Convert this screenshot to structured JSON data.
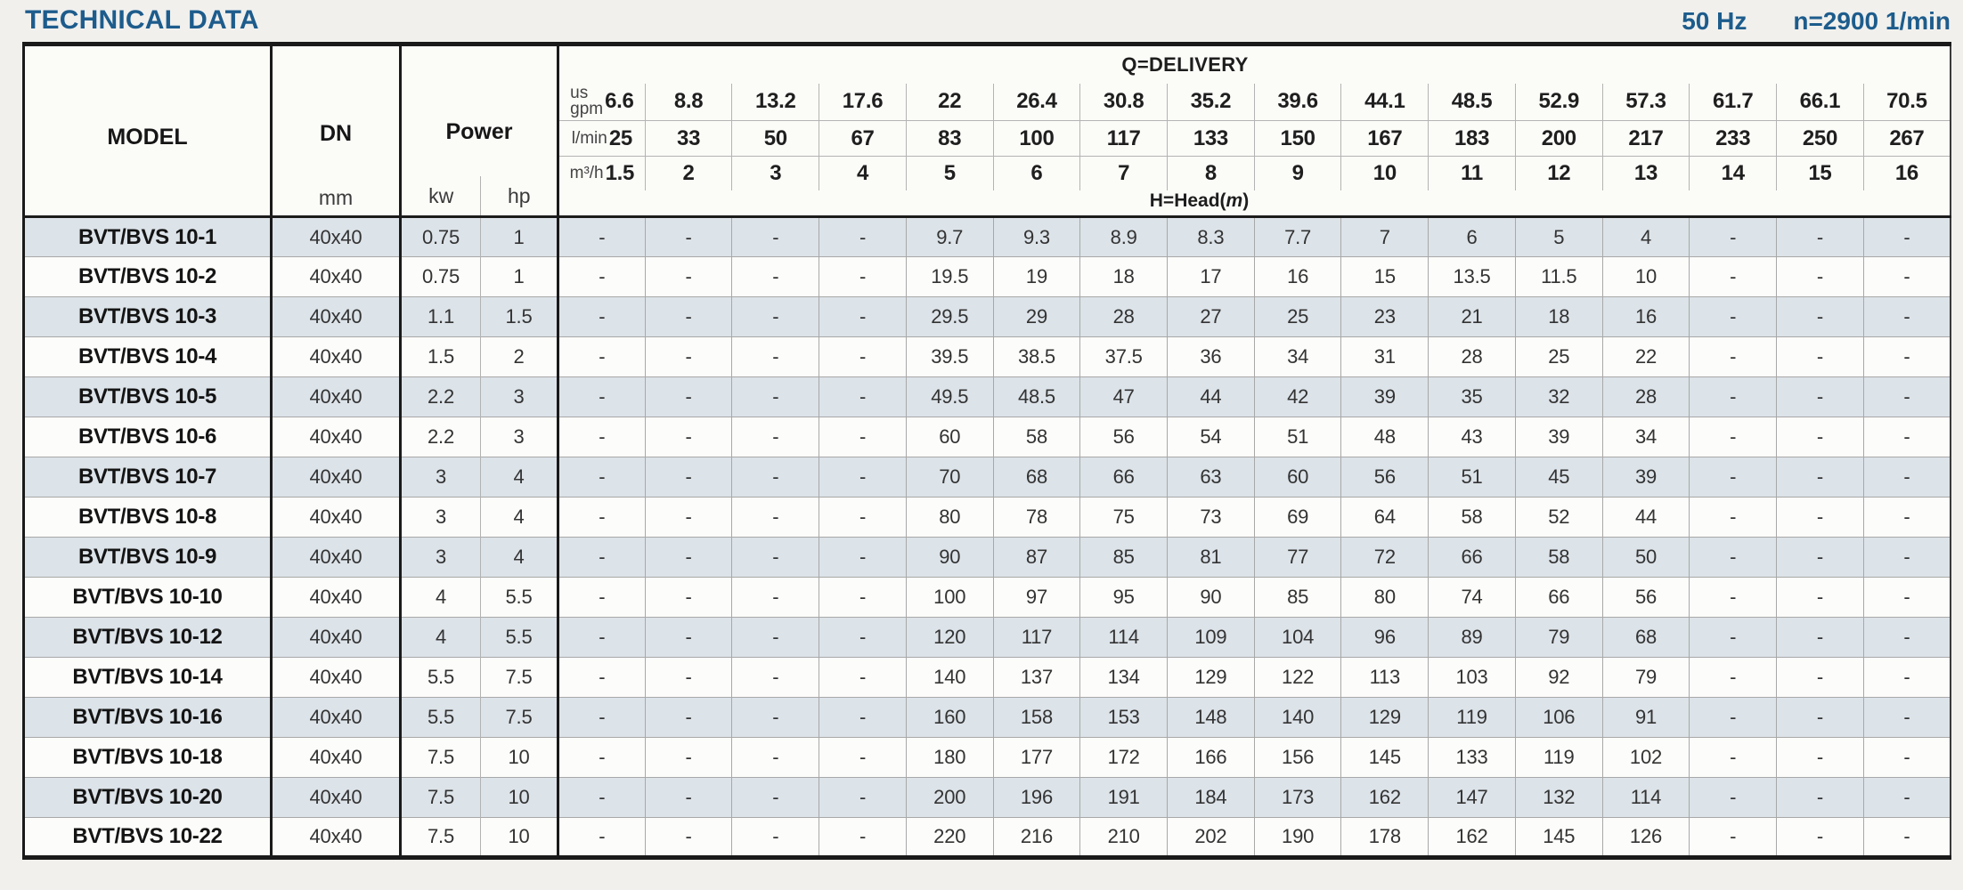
{
  "header": {
    "title": "TECHNICAL DATA",
    "frequency": "50 Hz",
    "speed": "n=2900 1/min"
  },
  "colors": {
    "accent_blue": "#1d5c8c",
    "stripe": "#dce3e9"
  },
  "table": {
    "col_headers": {
      "model": "MODEL",
      "dn": "DN",
      "dn_unit": "mm",
      "power": "Power",
      "power_units": [
        "kw",
        "hp"
      ]
    },
    "q_header": {
      "group_label": "Q=DELIVERY",
      "head_label_prefix": "H=Head(",
      "head_label_unit": "m",
      "head_label_suffix": ")",
      "unit_labels": {
        "gpm_line1": "us",
        "gpm_line2": "gpm",
        "lmin": "l/min",
        "m3h": "m³/h"
      },
      "us_gpm": [
        "6.6",
        "8.8",
        "13.2",
        "17.6",
        "22",
        "26.4",
        "30.8",
        "35.2",
        "39.6",
        "44.1",
        "48.5",
        "52.9",
        "57.3",
        "61.7",
        "66.1",
        "70.5"
      ],
      "l_min": [
        "25",
        "33",
        "50",
        "67",
        "83",
        "100",
        "117",
        "133",
        "150",
        "167",
        "183",
        "200",
        "217",
        "233",
        "250",
        "267"
      ],
      "m3_h": [
        "1.5",
        "2",
        "3",
        "4",
        "5",
        "6",
        "7",
        "8",
        "9",
        "10",
        "11",
        "12",
        "13",
        "14",
        "15",
        "16"
      ]
    },
    "rows": [
      {
        "model": "BVT/BVS 10-1",
        "dn": "40x40",
        "kw": "0.75",
        "hp": "1",
        "head_m": [
          "-",
          "-",
          "-",
          "-",
          "9.7",
          "9.3",
          "8.9",
          "8.3",
          "7.7",
          "7",
          "6",
          "5",
          "4",
          "-",
          "-",
          "-"
        ]
      },
      {
        "model": "BVT/BVS 10-2",
        "dn": "40x40",
        "kw": "0.75",
        "hp": "1",
        "head_m": [
          "-",
          "-",
          "-",
          "-",
          "19.5",
          "19",
          "18",
          "17",
          "16",
          "15",
          "13.5",
          "11.5",
          "10",
          "-",
          "-",
          "-"
        ]
      },
      {
        "model": "BVT/BVS 10-3",
        "dn": "40x40",
        "kw": "1.1",
        "hp": "1.5",
        "head_m": [
          "-",
          "-",
          "-",
          "-",
          "29.5",
          "29",
          "28",
          "27",
          "25",
          "23",
          "21",
          "18",
          "16",
          "-",
          "-",
          "-"
        ]
      },
      {
        "model": "BVT/BVS 10-4",
        "dn": "40x40",
        "kw": "1.5",
        "hp": "2",
        "head_m": [
          "-",
          "-",
          "-",
          "-",
          "39.5",
          "38.5",
          "37.5",
          "36",
          "34",
          "31",
          "28",
          "25",
          "22",
          "-",
          "-",
          "-"
        ]
      },
      {
        "model": "BVT/BVS 10-5",
        "dn": "40x40",
        "kw": "2.2",
        "hp": "3",
        "head_m": [
          "-",
          "-",
          "-",
          "-",
          "49.5",
          "48.5",
          "47",
          "44",
          "42",
          "39",
          "35",
          "32",
          "28",
          "-",
          "-",
          "-"
        ]
      },
      {
        "model": "BVT/BVS 10-6",
        "dn": "40x40",
        "kw": "2.2",
        "hp": "3",
        "head_m": [
          "-",
          "-",
          "-",
          "-",
          "60",
          "58",
          "56",
          "54",
          "51",
          "48",
          "43",
          "39",
          "34",
          "-",
          "-",
          "-"
        ]
      },
      {
        "model": "BVT/BVS 10-7",
        "dn": "40x40",
        "kw": "3",
        "hp": "4",
        "head_m": [
          "-",
          "-",
          "-",
          "-",
          "70",
          "68",
          "66",
          "63",
          "60",
          "56",
          "51",
          "45",
          "39",
          "-",
          "-",
          "-"
        ]
      },
      {
        "model": "BVT/BVS 10-8",
        "dn": "40x40",
        "kw": "3",
        "hp": "4",
        "head_m": [
          "-",
          "-",
          "-",
          "-",
          "80",
          "78",
          "75",
          "73",
          "69",
          "64",
          "58",
          "52",
          "44",
          "-",
          "-",
          "-"
        ]
      },
      {
        "model": "BVT/BVS 10-9",
        "dn": "40x40",
        "kw": "3",
        "hp": "4",
        "head_m": [
          "-",
          "-",
          "-",
          "-",
          "90",
          "87",
          "85",
          "81",
          "77",
          "72",
          "66",
          "58",
          "50",
          "-",
          "-",
          "-"
        ]
      },
      {
        "model": "BVT/BVS 10-10",
        "dn": "40x40",
        "kw": "4",
        "hp": "5.5",
        "head_m": [
          "-",
          "-",
          "-",
          "-",
          "100",
          "97",
          "95",
          "90",
          "85",
          "80",
          "74",
          "66",
          "56",
          "-",
          "-",
          "-"
        ]
      },
      {
        "model": "BVT/BVS 10-12",
        "dn": "40x40",
        "kw": "4",
        "hp": "5.5",
        "head_m": [
          "-",
          "-",
          "-",
          "-",
          "120",
          "117",
          "114",
          "109",
          "104",
          "96",
          "89",
          "79",
          "68",
          "-",
          "-",
          "-"
        ]
      },
      {
        "model": "BVT/BVS 10-14",
        "dn": "40x40",
        "kw": "5.5",
        "hp": "7.5",
        "head_m": [
          "-",
          "-",
          "-",
          "-",
          "140",
          "137",
          "134",
          "129",
          "122",
          "113",
          "103",
          "92",
          "79",
          "-",
          "-",
          "-"
        ]
      },
      {
        "model": "BVT/BVS 10-16",
        "dn": "40x40",
        "kw": "5.5",
        "hp": "7.5",
        "head_m": [
          "-",
          "-",
          "-",
          "-",
          "160",
          "158",
          "153",
          "148",
          "140",
          "129",
          "119",
          "106",
          "91",
          "-",
          "-",
          "-"
        ]
      },
      {
        "model": "BVT/BVS 10-18",
        "dn": "40x40",
        "kw": "7.5",
        "hp": "10",
        "head_m": [
          "-",
          "-",
          "-",
          "-",
          "180",
          "177",
          "172",
          "166",
          "156",
          "145",
          "133",
          "119",
          "102",
          "-",
          "-",
          "-"
        ]
      },
      {
        "model": "BVT/BVS 10-20",
        "dn": "40x40",
        "kw": "7.5",
        "hp": "10",
        "head_m": [
          "-",
          "-",
          "-",
          "-",
          "200",
          "196",
          "191",
          "184",
          "173",
          "162",
          "147",
          "132",
          "114",
          "-",
          "-",
          "-"
        ]
      },
      {
        "model": "BVT/BVS 10-22",
        "dn": "40x40",
        "kw": "7.5",
        "hp": "10",
        "head_m": [
          "-",
          "-",
          "-",
          "-",
          "220",
          "216",
          "210",
          "202",
          "190",
          "178",
          "162",
          "145",
          "126",
          "-",
          "-",
          "-"
        ]
      }
    ]
  }
}
